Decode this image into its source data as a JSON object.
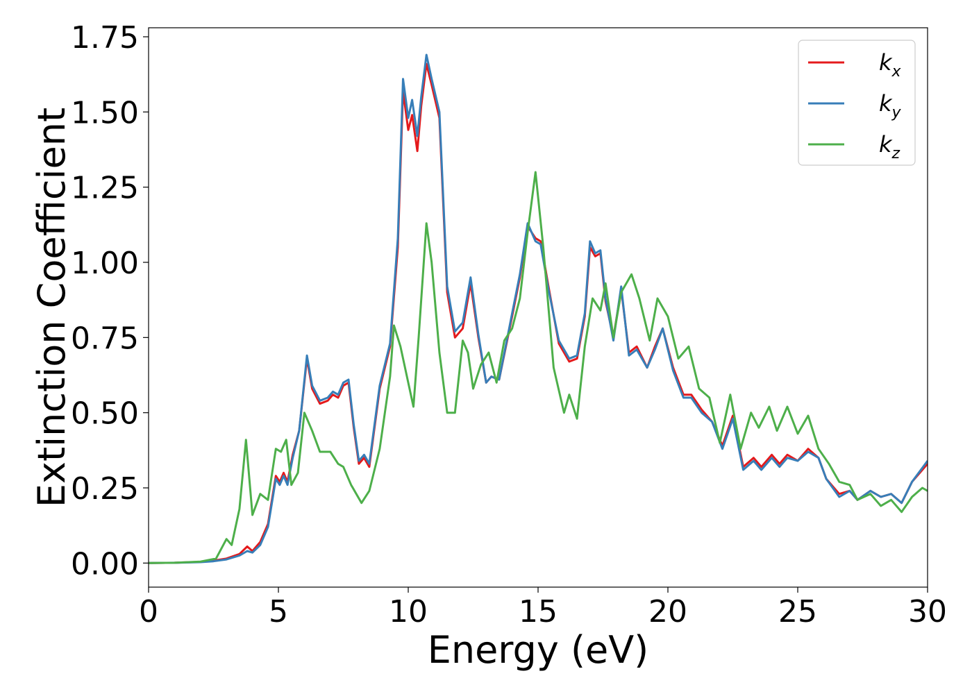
{
  "chart_data": {
    "type": "line",
    "title": "",
    "xlabel": "Energy (eV)",
    "ylabel": "Extinction Coefficient",
    "xlim": [
      0,
      30
    ],
    "ylim": [
      -0.08,
      1.78
    ],
    "xticks": [
      0,
      5,
      10,
      15,
      20,
      25,
      30
    ],
    "xtick_labels": [
      "0",
      "5",
      "10",
      "15",
      "20",
      "25",
      "30"
    ],
    "yticks": [
      0.0,
      0.25,
      0.5,
      0.75,
      1.0,
      1.25,
      1.5,
      1.75
    ],
    "ytick_labels": [
      "0.00",
      "0.25",
      "0.50",
      "0.75",
      "1.00",
      "1.25",
      "1.50",
      "1.75"
    ],
    "grid": false,
    "legend_position": "top-right",
    "series": [
      {
        "name": "k",
        "subscript": "x",
        "color": "#e41a1c",
        "points": [
          [
            0,
            0
          ],
          [
            1,
            0.001
          ],
          [
            2,
            0.004
          ],
          [
            2.5,
            0.008
          ],
          [
            3,
            0.015
          ],
          [
            3.5,
            0.03
          ],
          [
            3.8,
            0.055
          ],
          [
            4.0,
            0.04
          ],
          [
            4.3,
            0.07
          ],
          [
            4.6,
            0.13
          ],
          [
            4.9,
            0.29
          ],
          [
            5.05,
            0.27
          ],
          [
            5.2,
            0.3
          ],
          [
            5.35,
            0.27
          ],
          [
            5.55,
            0.36
          ],
          [
            5.8,
            0.44
          ],
          [
            6.1,
            0.68
          ],
          [
            6.3,
            0.58
          ],
          [
            6.6,
            0.53
          ],
          [
            6.9,
            0.54
          ],
          [
            7.1,
            0.56
          ],
          [
            7.3,
            0.55
          ],
          [
            7.5,
            0.59
          ],
          [
            7.7,
            0.6
          ],
          [
            7.9,
            0.45
          ],
          [
            8.1,
            0.33
          ],
          [
            8.3,
            0.35
          ],
          [
            8.5,
            0.32
          ],
          [
            8.9,
            0.58
          ],
          [
            9.3,
            0.72
          ],
          [
            9.6,
            1.05
          ],
          [
            9.8,
            1.57
          ],
          [
            10.0,
            1.44
          ],
          [
            10.15,
            1.49
          ],
          [
            10.35,
            1.37
          ],
          [
            10.5,
            1.52
          ],
          [
            10.7,
            1.66
          ],
          [
            10.9,
            1.59
          ],
          [
            11.2,
            1.48
          ],
          [
            11.5,
            0.9
          ],
          [
            11.8,
            0.75
          ],
          [
            12.1,
            0.78
          ],
          [
            12.4,
            0.93
          ],
          [
            12.7,
            0.75
          ],
          [
            13.0,
            0.6
          ],
          [
            13.2,
            0.62
          ],
          [
            13.5,
            0.61
          ],
          [
            14.0,
            0.82
          ],
          [
            14.3,
            0.95
          ],
          [
            14.6,
            1.12
          ],
          [
            14.9,
            1.08
          ],
          [
            15.1,
            1.07
          ],
          [
            15.4,
            0.92
          ],
          [
            15.8,
            0.73
          ],
          [
            16.2,
            0.67
          ],
          [
            16.5,
            0.68
          ],
          [
            16.8,
            0.82
          ],
          [
            17.0,
            1.05
          ],
          [
            17.2,
            1.02
          ],
          [
            17.4,
            1.03
          ],
          [
            17.6,
            0.87
          ],
          [
            17.9,
            0.75
          ],
          [
            18.2,
            0.91
          ],
          [
            18.5,
            0.7
          ],
          [
            18.8,
            0.72
          ],
          [
            19.2,
            0.65
          ],
          [
            19.5,
            0.72
          ],
          [
            19.8,
            0.78
          ],
          [
            20.2,
            0.65
          ],
          [
            20.6,
            0.56
          ],
          [
            20.9,
            0.56
          ],
          [
            21.3,
            0.51
          ],
          [
            21.7,
            0.47
          ],
          [
            22.1,
            0.39
          ],
          [
            22.5,
            0.49
          ],
          [
            22.9,
            0.32
          ],
          [
            23.3,
            0.35
          ],
          [
            23.6,
            0.32
          ],
          [
            24.0,
            0.36
          ],
          [
            24.3,
            0.33
          ],
          [
            24.6,
            0.36
          ],
          [
            25.0,
            0.34
          ],
          [
            25.4,
            0.38
          ],
          [
            25.8,
            0.35
          ],
          [
            26.1,
            0.28
          ],
          [
            26.6,
            0.23
          ],
          [
            27.0,
            0.24
          ],
          [
            27.3,
            0.21
          ],
          [
            27.8,
            0.24
          ],
          [
            28.2,
            0.22
          ],
          [
            28.6,
            0.23
          ],
          [
            29.0,
            0.2
          ],
          [
            29.4,
            0.27
          ],
          [
            30,
            0.33
          ]
        ]
      },
      {
        "name": "k",
        "subscript": "y",
        "color": "#377eb8",
        "points": [
          [
            0,
            0
          ],
          [
            1,
            0.001
          ],
          [
            2,
            0.003
          ],
          [
            2.5,
            0.006
          ],
          [
            3,
            0.012
          ],
          [
            3.5,
            0.025
          ],
          [
            3.8,
            0.04
          ],
          [
            4.0,
            0.035
          ],
          [
            4.3,
            0.06
          ],
          [
            4.6,
            0.12
          ],
          [
            4.9,
            0.28
          ],
          [
            5.05,
            0.26
          ],
          [
            5.2,
            0.29
          ],
          [
            5.35,
            0.26
          ],
          [
            5.55,
            0.35
          ],
          [
            5.8,
            0.44
          ],
          [
            6.1,
            0.69
          ],
          [
            6.3,
            0.59
          ],
          [
            6.6,
            0.54
          ],
          [
            6.9,
            0.55
          ],
          [
            7.1,
            0.57
          ],
          [
            7.3,
            0.56
          ],
          [
            7.5,
            0.6
          ],
          [
            7.7,
            0.61
          ],
          [
            7.9,
            0.46
          ],
          [
            8.1,
            0.34
          ],
          [
            8.3,
            0.36
          ],
          [
            8.5,
            0.33
          ],
          [
            8.9,
            0.59
          ],
          [
            9.3,
            0.73
          ],
          [
            9.6,
            1.08
          ],
          [
            9.8,
            1.61
          ],
          [
            10.0,
            1.48
          ],
          [
            10.15,
            1.54
          ],
          [
            10.35,
            1.42
          ],
          [
            10.5,
            1.55
          ],
          [
            10.7,
            1.69
          ],
          [
            10.9,
            1.61
          ],
          [
            11.2,
            1.5
          ],
          [
            11.5,
            0.92
          ],
          [
            11.8,
            0.77
          ],
          [
            12.1,
            0.8
          ],
          [
            12.4,
            0.95
          ],
          [
            12.7,
            0.76
          ],
          [
            13.0,
            0.6
          ],
          [
            13.2,
            0.62
          ],
          [
            13.5,
            0.61
          ],
          [
            14.0,
            0.83
          ],
          [
            14.3,
            0.96
          ],
          [
            14.6,
            1.13
          ],
          [
            14.9,
            1.07
          ],
          [
            15.1,
            1.06
          ],
          [
            15.4,
            0.91
          ],
          [
            15.8,
            0.74
          ],
          [
            16.2,
            0.68
          ],
          [
            16.5,
            0.69
          ],
          [
            16.8,
            0.83
          ],
          [
            17.0,
            1.07
          ],
          [
            17.2,
            1.03
          ],
          [
            17.4,
            1.04
          ],
          [
            17.6,
            0.88
          ],
          [
            17.9,
            0.74
          ],
          [
            18.2,
            0.92
          ],
          [
            18.5,
            0.69
          ],
          [
            18.8,
            0.71
          ],
          [
            19.2,
            0.65
          ],
          [
            19.5,
            0.71
          ],
          [
            19.8,
            0.78
          ],
          [
            20.2,
            0.64
          ],
          [
            20.6,
            0.55
          ],
          [
            20.9,
            0.55
          ],
          [
            21.3,
            0.5
          ],
          [
            21.7,
            0.47
          ],
          [
            22.1,
            0.38
          ],
          [
            22.5,
            0.48
          ],
          [
            22.9,
            0.31
          ],
          [
            23.3,
            0.34
          ],
          [
            23.6,
            0.31
          ],
          [
            24.0,
            0.35
          ],
          [
            24.3,
            0.32
          ],
          [
            24.6,
            0.35
          ],
          [
            25.0,
            0.34
          ],
          [
            25.4,
            0.37
          ],
          [
            25.8,
            0.35
          ],
          [
            26.1,
            0.28
          ],
          [
            26.6,
            0.22
          ],
          [
            27.0,
            0.24
          ],
          [
            27.3,
            0.21
          ],
          [
            27.8,
            0.24
          ],
          [
            28.2,
            0.22
          ],
          [
            28.6,
            0.23
          ],
          [
            29.0,
            0.2
          ],
          [
            29.4,
            0.27
          ],
          [
            30,
            0.34
          ]
        ]
      },
      {
        "name": "k",
        "subscript": "z",
        "color": "#4daf4a",
        "points": [
          [
            0,
            0
          ],
          [
            1,
            0.001
          ],
          [
            2,
            0.005
          ],
          [
            2.6,
            0.015
          ],
          [
            3.0,
            0.08
          ],
          [
            3.2,
            0.06
          ],
          [
            3.5,
            0.18
          ],
          [
            3.75,
            0.41
          ],
          [
            4.0,
            0.16
          ],
          [
            4.3,
            0.23
          ],
          [
            4.6,
            0.21
          ],
          [
            4.9,
            0.38
          ],
          [
            5.1,
            0.37
          ],
          [
            5.3,
            0.41
          ],
          [
            5.5,
            0.26
          ],
          [
            5.75,
            0.3
          ],
          [
            6.0,
            0.5
          ],
          [
            6.3,
            0.44
          ],
          [
            6.6,
            0.37
          ],
          [
            7.0,
            0.37
          ],
          [
            7.3,
            0.33
          ],
          [
            7.5,
            0.32
          ],
          [
            7.8,
            0.26
          ],
          [
            8.2,
            0.2
          ],
          [
            8.5,
            0.24
          ],
          [
            8.9,
            0.38
          ],
          [
            9.3,
            0.62
          ],
          [
            9.45,
            0.79
          ],
          [
            9.7,
            0.72
          ],
          [
            10.0,
            0.6
          ],
          [
            10.2,
            0.52
          ],
          [
            10.4,
            0.75
          ],
          [
            10.7,
            1.13
          ],
          [
            10.9,
            1.0
          ],
          [
            11.2,
            0.7
          ],
          [
            11.5,
            0.5
          ],
          [
            11.8,
            0.5
          ],
          [
            12.1,
            0.74
          ],
          [
            12.3,
            0.7
          ],
          [
            12.5,
            0.58
          ],
          [
            12.8,
            0.66
          ],
          [
            13.1,
            0.7
          ],
          [
            13.4,
            0.6
          ],
          [
            13.7,
            0.74
          ],
          [
            14.0,
            0.78
          ],
          [
            14.3,
            0.88
          ],
          [
            14.6,
            1.1
          ],
          [
            14.9,
            1.3
          ],
          [
            15.2,
            1.05
          ],
          [
            15.6,
            0.65
          ],
          [
            16.0,
            0.5
          ],
          [
            16.2,
            0.56
          ],
          [
            16.5,
            0.48
          ],
          [
            16.8,
            0.72
          ],
          [
            17.1,
            0.88
          ],
          [
            17.4,
            0.84
          ],
          [
            17.6,
            0.93
          ],
          [
            17.9,
            0.75
          ],
          [
            18.2,
            0.9
          ],
          [
            18.6,
            0.96
          ],
          [
            18.9,
            0.88
          ],
          [
            19.3,
            0.74
          ],
          [
            19.6,
            0.88
          ],
          [
            20.0,
            0.82
          ],
          [
            20.4,
            0.68
          ],
          [
            20.8,
            0.72
          ],
          [
            21.2,
            0.58
          ],
          [
            21.6,
            0.55
          ],
          [
            22.0,
            0.4
          ],
          [
            22.4,
            0.56
          ],
          [
            22.8,
            0.38
          ],
          [
            23.2,
            0.5
          ],
          [
            23.5,
            0.45
          ],
          [
            23.9,
            0.52
          ],
          [
            24.2,
            0.44
          ],
          [
            24.6,
            0.52
          ],
          [
            25.0,
            0.43
          ],
          [
            25.4,
            0.49
          ],
          [
            25.8,
            0.38
          ],
          [
            26.2,
            0.33
          ],
          [
            26.6,
            0.27
          ],
          [
            27.0,
            0.26
          ],
          [
            27.3,
            0.21
          ],
          [
            27.8,
            0.23
          ],
          [
            28.2,
            0.19
          ],
          [
            28.6,
            0.21
          ],
          [
            29.0,
            0.17
          ],
          [
            29.4,
            0.22
          ],
          [
            29.8,
            0.25
          ],
          [
            30,
            0.24
          ]
        ]
      }
    ]
  }
}
